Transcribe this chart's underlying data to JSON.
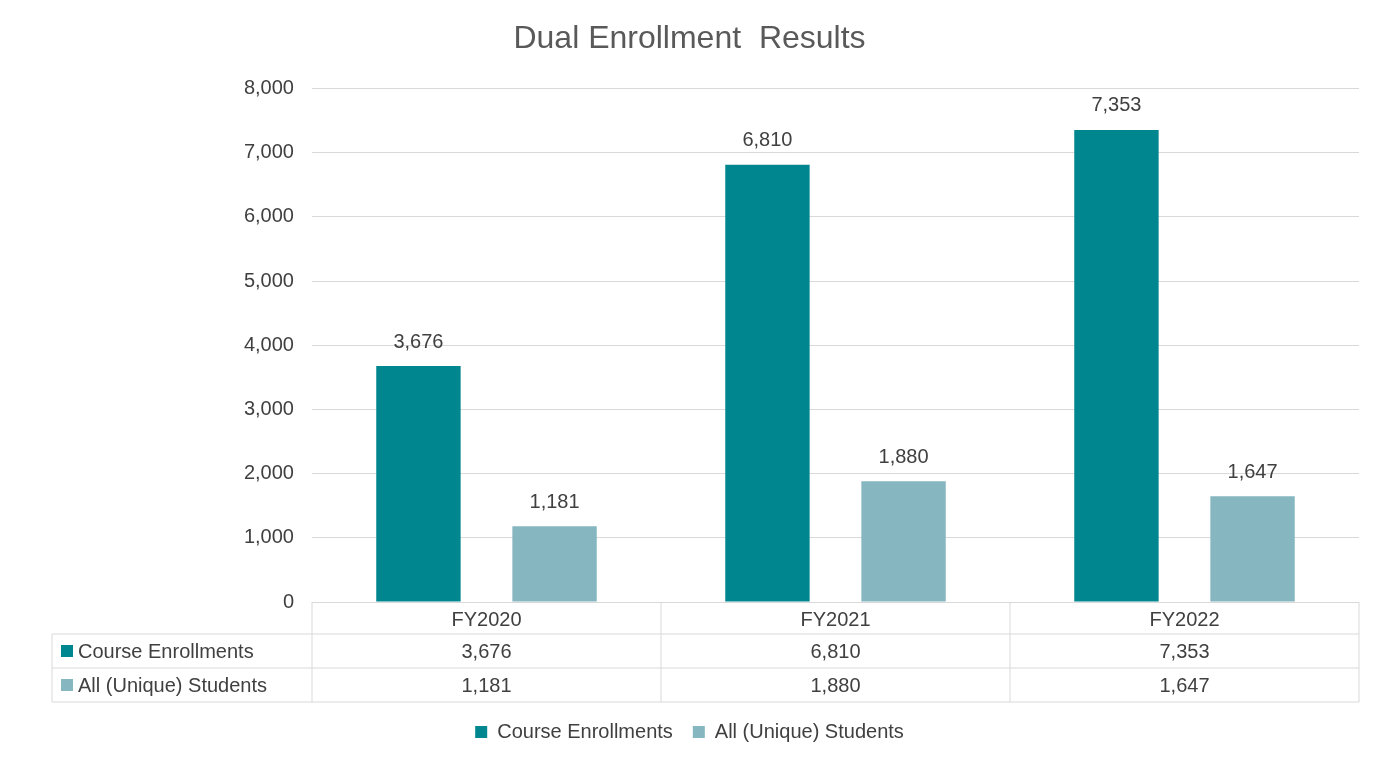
{
  "chart_data": {
    "type": "bar",
    "title": "Dual Enrollment  Results",
    "categories": [
      "FY2020",
      "FY2021",
      "FY2022"
    ],
    "series": [
      {
        "name": "Course Enrollments",
        "color": "#00868f",
        "values": [
          3676,
          6810,
          7353
        ],
        "value_labels": [
          "3,676",
          "6,810",
          "7,353"
        ]
      },
      {
        "name": "All (Unique) Students",
        "color": "#86b6bf",
        "values": [
          1181,
          1880,
          1647
        ],
        "value_labels": [
          "1,181",
          "1,880",
          "1,647"
        ]
      }
    ],
    "ylim": [
      0,
      8000
    ],
    "yticks": [
      0,
      {
        "value": 1000,
        "label": "1,000"
      },
      {
        "value": 2000,
        "label": "2,000"
      },
      {
        "value": 3000,
        "label": "3,000"
      },
      {
        "value": 4000,
        "label": "4,000"
      },
      {
        "value": 5000,
        "label": "5,000"
      },
      {
        "value": 6000,
        "label": "6,000"
      },
      {
        "value": 7000,
        "label": "7,000"
      },
      {
        "value": 8000,
        "label": "8,000"
      }
    ],
    "grid": "y",
    "legend": "bottom"
  }
}
